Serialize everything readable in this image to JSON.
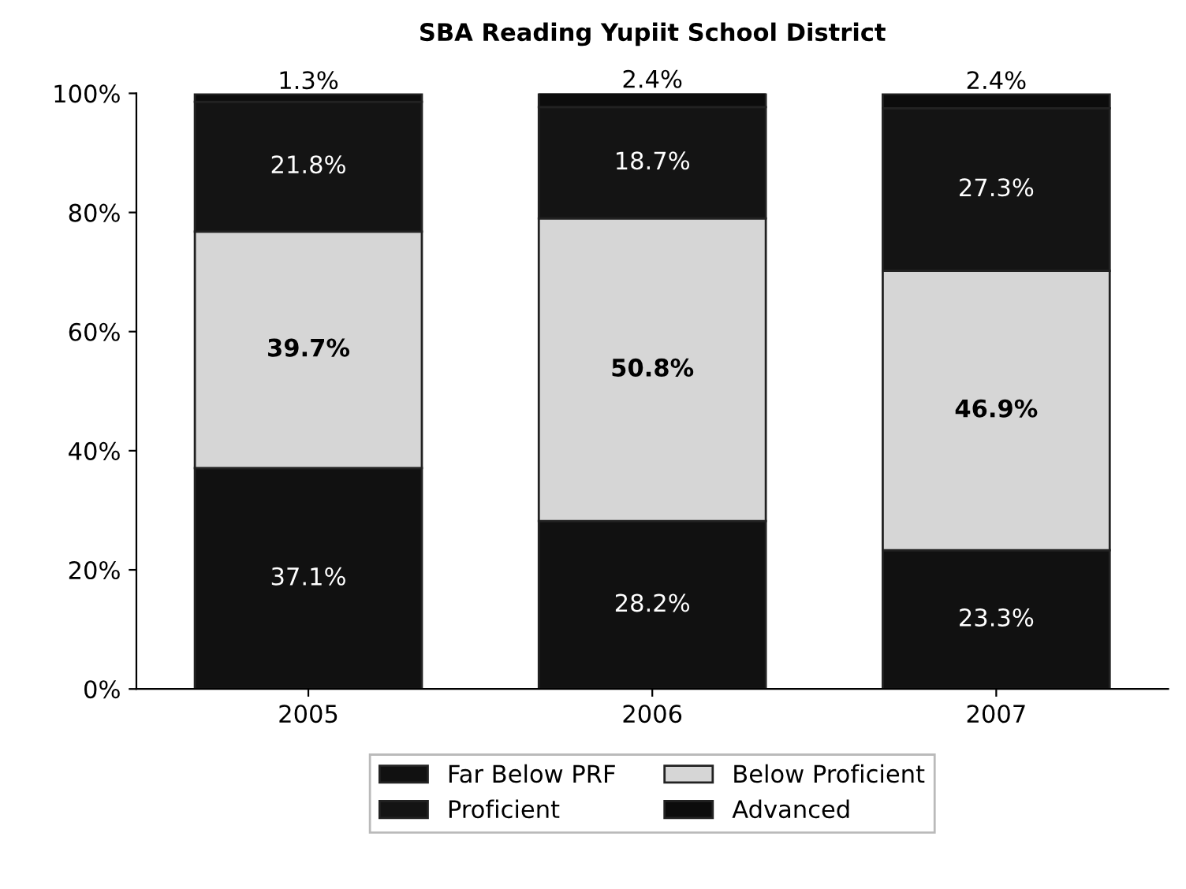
{
  "chart_data": {
    "type": "bar",
    "title": "SBA Reading Yupiit School District",
    "stacked": true,
    "categories": [
      "2005",
      "2006",
      "2007"
    ],
    "series": [
      {
        "name": "Far Below PRF",
        "color": "#111111",
        "values": [
          37.1,
          28.2,
          23.3
        ],
        "value_labels": [
          "37.1%",
          "28.2%",
          "23.3%"
        ]
      },
      {
        "name": "Below Proficient",
        "color": "#d6d6d6",
        "values": [
          39.7,
          50.8,
          46.9
        ],
        "value_labels": [
          "39.7%",
          "50.8%",
          "46.9%"
        ]
      },
      {
        "name": "Proficient",
        "color": "#141414",
        "values": [
          21.8,
          18.7,
          27.3
        ],
        "value_labels": [
          "21.8%",
          "18.7%",
          "27.3%"
        ]
      },
      {
        "name": "Advanced",
        "color": "#0c0c0c",
        "values": [
          1.3,
          2.4,
          2.4
        ],
        "value_labels": [
          "1.3%",
          "2.4%",
          "2.4%"
        ]
      }
    ],
    "ylim": [
      0,
      100
    ],
    "yticks": [
      {
        "value": 0,
        "label": "0%"
      },
      {
        "value": 20,
        "label": "20%"
      },
      {
        "value": 40,
        "label": "40%"
      },
      {
        "value": 60,
        "label": "60%"
      },
      {
        "value": 80,
        "label": "80%"
      },
      {
        "value": 100,
        "label": "100%"
      }
    ],
    "grid": false,
    "legend": "bottom"
  }
}
